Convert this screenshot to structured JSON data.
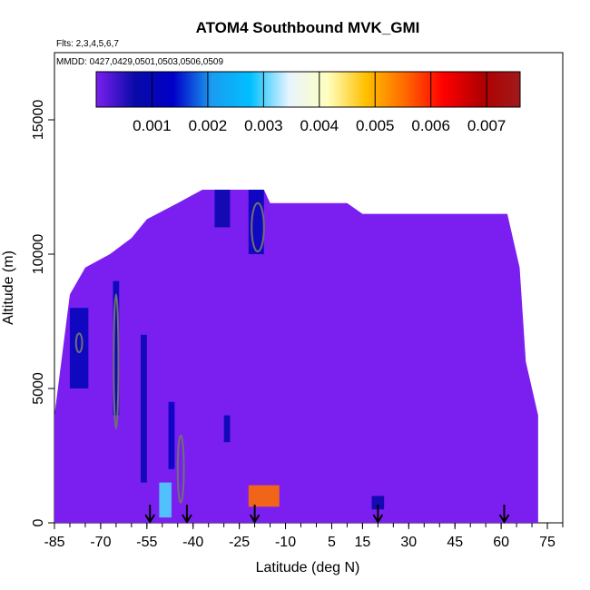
{
  "chart_data": {
    "type": "heatmap",
    "title": "ATOM4 Southbound MVK_GMI",
    "subtitle_flights": "Flts: 2,3,4,5,6,7",
    "subtitle_dates": "MMDD: 0427,0429,0501,0503,0506,0509",
    "xlabel": "Latitude (deg N)",
    "ylabel": "Altitude (m)",
    "xlim": [
      -85,
      80
    ],
    "ylim": [
      0,
      17500
    ],
    "x_tick_labels": [
      "-85",
      "-70",
      "-55",
      "-40",
      "-25",
      "-10",
      "5",
      "15",
      "30",
      "45",
      "60",
      "75"
    ],
    "x_tick_values": [
      -85,
      -70,
      -55,
      -40,
      -25,
      -10,
      5,
      15,
      30,
      45,
      60,
      75
    ],
    "y_tick_labels": [
      "0",
      "5000",
      "10000",
      "15000"
    ],
    "y_tick_values": [
      0,
      5000,
      10000,
      15000
    ],
    "colorbar": {
      "range": [
        0,
        0.0076
      ],
      "tick_labels": [
        "0.001",
        "0.002",
        "0.003",
        "0.004",
        "0.005",
        "0.006",
        "0.007"
      ],
      "tick_values": [
        0.001,
        0.002,
        0.003,
        0.004,
        0.005,
        0.006,
        0.007
      ],
      "colors": [
        "#7a1ff0",
        "#0a0aa8",
        "#0000c8",
        "#1a9cf0",
        "#00c0ff",
        "#e8f4ff",
        "#ffffc0",
        "#ffc000",
        "#ff6a00",
        "#ff0000",
        "#b00000",
        "#a01a1a"
      ]
    },
    "background_value": 0.0,
    "domain_bounds": [
      {
        "lat": -85,
        "alt_top": 4000
      },
      {
        "lat": -80,
        "alt_top": 8500
      },
      {
        "lat": -75,
        "alt_top": 9500
      },
      {
        "lat": -67,
        "alt_top": 10000
      },
      {
        "lat": -60,
        "alt_top": 10600
      },
      {
        "lat": -55,
        "alt_top": 11300
      },
      {
        "lat": -45,
        "alt_top": 11900
      },
      {
        "lat": -37,
        "alt_top": 12400
      },
      {
        "lat": -17,
        "alt_top": 12400
      },
      {
        "lat": -15,
        "alt_top": 11900
      },
      {
        "lat": 10,
        "alt_top": 11900
      },
      {
        "lat": 15,
        "alt_top": 11500
      },
      {
        "lat": 62,
        "alt_top": 11500
      },
      {
        "lat": 64,
        "alt_top": 10500
      },
      {
        "lat": 66,
        "alt_top": 9500
      },
      {
        "lat": 68,
        "alt_top": 6000
      },
      {
        "lat": 72,
        "alt_top": 4000
      },
      {
        "lat": 72,
        "alt_top": 0
      }
    ],
    "enhanced_regions": [
      {
        "lat": [
          -80,
          -74
        ],
        "alt": [
          5000,
          8000
        ],
        "value": 0.0011
      },
      {
        "lat": [
          -66,
          -64
        ],
        "alt": [
          4000,
          9000
        ],
        "value": 0.001
      },
      {
        "lat": [
          -57,
          -55
        ],
        "alt": [
          1500,
          7000
        ],
        "value": 0.0009
      },
      {
        "lat": [
          -48,
          -46
        ],
        "alt": [
          2000,
          4500
        ],
        "value": 0.0012
      },
      {
        "lat": [
          -30,
          -28
        ],
        "alt": [
          3000,
          4000
        ],
        "value": 0.0009
      },
      {
        "lat": [
          -22,
          -17
        ],
        "alt": [
          10000,
          12400
        ],
        "value": 0.0011
      },
      {
        "lat": [
          -33,
          -28
        ],
        "alt": [
          11000,
          12400
        ],
        "value": 0.0008
      },
      {
        "lat": [
          -51,
          -47
        ],
        "alt": [
          200,
          1500
        ],
        "value": 0.003
      },
      {
        "lat": [
          -22,
          -12
        ],
        "alt": [
          600,
          1400
        ],
        "value": 0.0055
      },
      {
        "lat": [
          18,
          22
        ],
        "alt": [
          500,
          1000
        ],
        "value": 0.0008
      }
    ],
    "contours": [
      {
        "lat": -77,
        "alt": 6700,
        "w": 2,
        "h": 700
      },
      {
        "lat": -19,
        "alt": 11000,
        "w": 4,
        "h": 1800
      },
      {
        "lat": -65,
        "alt": 6000,
        "w": 1.5,
        "h": 5000
      },
      {
        "lat": -44,
        "alt": 2000,
        "w": 2,
        "h": 2500
      }
    ],
    "flight_markers_lat": [
      -54,
      -42,
      -20,
      20,
      61
    ]
  }
}
